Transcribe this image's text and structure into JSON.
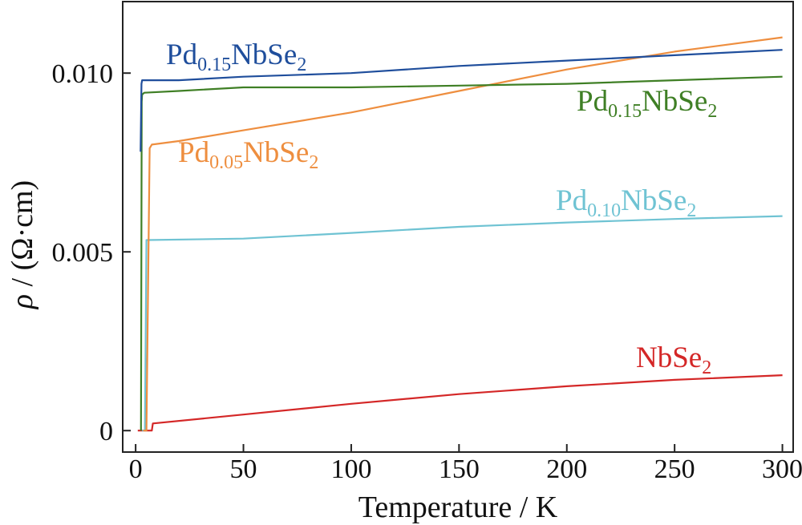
{
  "chart_data": {
    "type": "line",
    "title": "",
    "xlabel": "Temperature / K",
    "ylabel_symbol": "ρ",
    "ylabel_unit": " / (Ω·cm)",
    "xlim": [
      -6,
      305
    ],
    "ylim": [
      -0.0006,
      0.012
    ],
    "x_ticks": [
      0,
      50,
      100,
      150,
      200,
      250,
      300
    ],
    "x_tick_labels": [
      "0",
      "50",
      "100",
      "150",
      "200",
      "250",
      "300"
    ],
    "y_ticks": [
      0,
      0.005,
      0.01
    ],
    "y_tick_labels": [
      "0",
      "0.005",
      "0.010"
    ],
    "grid": false,
    "series": [
      {
        "name_main": "NbSe",
        "name_sub": "2",
        "name_prefix": "",
        "color": "#d42727",
        "x": [
          1,
          7.5,
          8,
          50,
          100,
          150,
          200,
          250,
          300
        ],
        "y": [
          0,
          0,
          0.0002,
          0.00045,
          0.00075,
          0.00102,
          0.00124,
          0.00142,
          0.00155
        ]
      },
      {
        "name_prefix": "Pd",
        "name_sub": "0.10",
        "name_main": "NbSe",
        "name_sub2": "2",
        "color": "#6fc3d3",
        "x": [
          3,
          4.3,
          5,
          50,
          100,
          150,
          200,
          250,
          300
        ],
        "y": [
          0,
          0,
          0.00533,
          0.00537,
          0.00553,
          0.0057,
          0.00582,
          0.00592,
          0.006
        ]
      },
      {
        "name_prefix": "Pd",
        "name_sub": "0.05",
        "name_main": "NbSe",
        "name_sub2": "2",
        "color": "#ee8e3f",
        "x": [
          3.5,
          5,
          6.5,
          7.5,
          20,
          50,
          100,
          150,
          200,
          250,
          300
        ],
        "y": [
          0,
          0,
          0.0079,
          0.008,
          0.0081,
          0.0084,
          0.0089,
          0.0095,
          0.0101,
          0.0106,
          0.011
        ]
      },
      {
        "name_prefix": "Pd",
        "name_sub": "0.15",
        "name_main": "NbSe",
        "name_sub2": "2",
        "color": "#3f7f25",
        "x": [
          2.5,
          2.8,
          3,
          4,
          20,
          50,
          100,
          150,
          200,
          250,
          300
        ],
        "y": [
          0,
          0.0092,
          0.0094,
          0.00945,
          0.0095,
          0.0096,
          0.0096,
          0.00965,
          0.0097,
          0.0098,
          0.0099
        ]
      },
      {
        "name_prefix": "Pd",
        "name_sub": "0.15",
        "name_main": "NbSe",
        "name_sub2": "2",
        "color": "#1f4e9c",
        "x": [
          2.3,
          2.7,
          3,
          5,
          20,
          50,
          100,
          150,
          200,
          250,
          300
        ],
        "y": [
          0.0078,
          0.0097,
          0.0098,
          0.0098,
          0.0098,
          0.0099,
          0.01,
          0.0102,
          0.01035,
          0.0105,
          0.01065
        ]
      }
    ]
  }
}
